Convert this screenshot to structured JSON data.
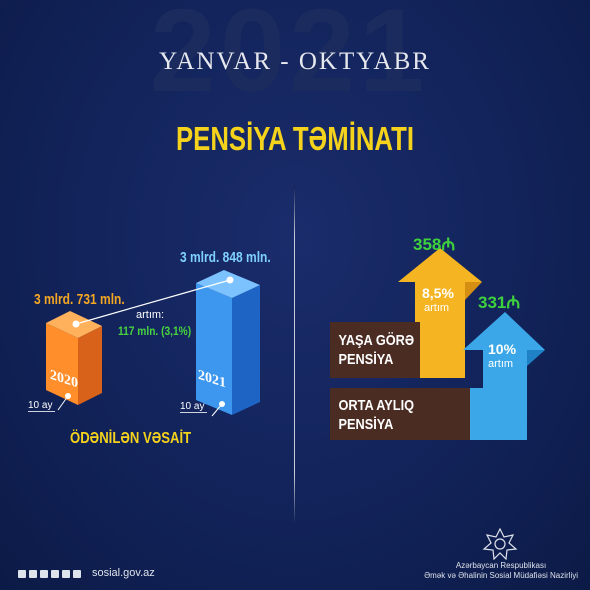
{
  "background_year": "2021",
  "period": "YANVAR - OKTYABR",
  "title": "PENSİYA TƏMİNATI",
  "left": {
    "value_2020": "3 mlrd. 731 mln.",
    "value_2021": "3 mlrd. 848 mln.",
    "growth_label": "artım:",
    "growth_value": "117 mln. (3,1%)",
    "year_2020": "2020",
    "year_2021": "2021",
    "period_2020": "10 ay",
    "period_2021": "10 ay",
    "caption": "ÖDƏNİLƏN VƏSAİT"
  },
  "right": {
    "age_amount": "358",
    "age_percent": "8,5%",
    "age_artim": "artım",
    "age_label_1": "YAŞA GÖRƏ",
    "age_label_2": "PENSİYA",
    "avg_amount": "331",
    "avg_percent": "10%",
    "avg_artim": "artım",
    "avg_label_1": "ORTA AYLIQ",
    "avg_label_2": "PENSİYA",
    "currency_symbol": "₼"
  },
  "footer": {
    "site": "sosial.gov.az",
    "ministry_line1": "Azərbaycan Respublikası",
    "ministry_line2": "Əmək və Əhalinin Sosial Müdafiəsi Nazirliyi"
  },
  "colors": {
    "background": "#12235a",
    "title": "#f5d31c",
    "bar_2020": "#f07a1d",
    "bar_2021": "#2f8be6",
    "arrow_age": "#f5b523",
    "arrow_avg": "#3ba7e8",
    "growth": "#47d43f"
  },
  "icons": [
    "facebook-icon",
    "instagram-icon",
    "twitter-icon",
    "telegram-icon",
    "youtube-icon",
    "linkedin-icon"
  ]
}
